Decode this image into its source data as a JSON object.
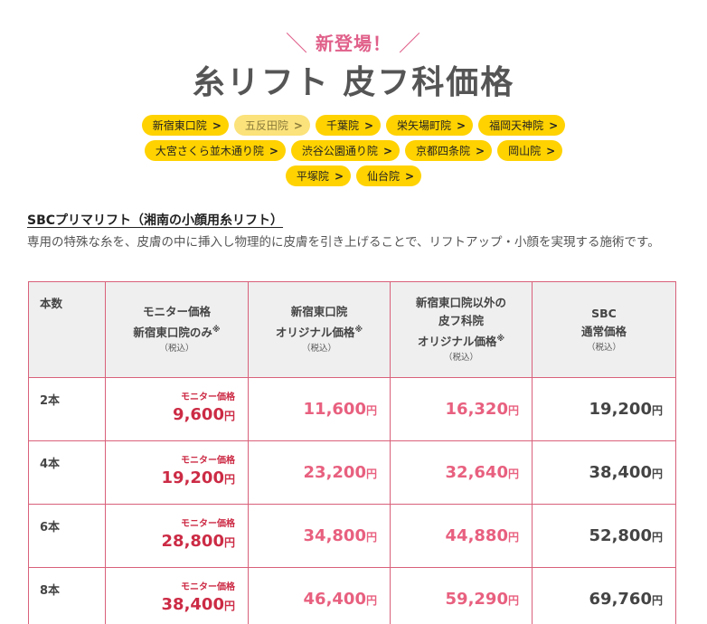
{
  "header": {
    "badge": "新登場！",
    "title": "糸リフト 皮フ科価格"
  },
  "clinics": [
    {
      "label": "新宿東口院",
      "active": true
    },
    {
      "label": "五反田院",
      "active": false
    },
    {
      "label": "千葉院",
      "active": true
    },
    {
      "label": "栄矢場町院",
      "active": true
    },
    {
      "label": "福岡天神院",
      "active": true
    },
    {
      "label": "大宮さくら並木通り院",
      "active": true
    },
    {
      "label": "渋谷公園通り院",
      "active": true
    },
    {
      "label": "京都四条院",
      "active": true
    },
    {
      "label": "岡山院",
      "active": true
    },
    {
      "label": "平塚院",
      "active": true
    },
    {
      "label": "仙台院",
      "active": true
    }
  ],
  "section": {
    "title": "SBCプリマリフト（湘南の小顔用糸リフト）",
    "description": "専用の特殊な糸を、皮膚の中に挿入し物理的に皮膚を引き上げることで、リフトアップ・小顔を実現する施術です。"
  },
  "table": {
    "headers": {
      "count": "本数",
      "monitor_line1": "モニター価格",
      "monitor_line2": "新宿東口院のみ",
      "shinjuku_line1": "新宿東口院",
      "shinjuku_line2": "オリジナル価格",
      "other_line1": "新宿東口院以外の",
      "other_line2": "皮フ科院",
      "other_line3": "オリジナル価格",
      "sbc_line1": "SBC",
      "sbc_line2": "通常価格",
      "note_mark": "※",
      "tax": "（税込）"
    },
    "monitor_label": "モニター価格",
    "yen": "円",
    "rows": [
      {
        "count": "2本",
        "monitor": "9,600",
        "shinjuku": "11,600",
        "other": "16,320",
        "sbc": "19,200"
      },
      {
        "count": "4本",
        "monitor": "19,200",
        "shinjuku": "23,200",
        "other": "32,640",
        "sbc": "38,400"
      },
      {
        "count": "6本",
        "monitor": "28,800",
        "shinjuku": "34,800",
        "other": "44,880",
        "sbc": "52,800"
      },
      {
        "count": "8本",
        "monitor": "38,400",
        "shinjuku": "46,400",
        "other": "59,290",
        "sbc": "69,760"
      }
    ]
  }
}
